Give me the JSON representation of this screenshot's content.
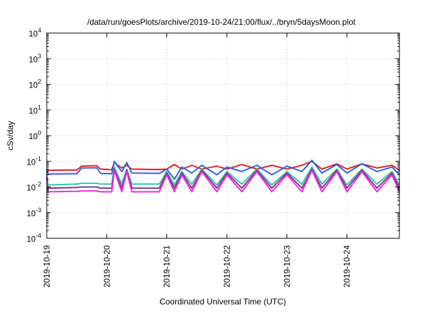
{
  "chart_data": {
    "type": "line",
    "title": "/data/run/goesPlots/archive/2019-10-24/21:00/flux/../bryn/5daysMoon.plot",
    "xlabel": "Coordinated Universal Time (UTC)",
    "ylabel": "cSv/day",
    "yscale": "log",
    "ylim": [
      0.0001,
      10000
    ],
    "xlim": [
      "2019-10-19",
      "2019-10-24T21:00"
    ],
    "grid": true,
    "legend": "none",
    "x_ticks": [
      {
        "value": "2019-10-19",
        "label": "2019-10-19"
      },
      {
        "value": "2019-10-20",
        "label": "2019-10-20"
      },
      {
        "value": "2019-10-21",
        "label": "2019-10-21"
      },
      {
        "value": "2019-10-22",
        "label": "2019-10-22"
      },
      {
        "value": "2019-10-23",
        "label": "2019-10-23"
      },
      {
        "value": "2019-10-24",
        "label": "2019-10-24"
      }
    ],
    "y_ticks": [
      {
        "value": 0.0001,
        "base": "10",
        "exp": "-4"
      },
      {
        "value": 0.001,
        "base": "10",
        "exp": "-3"
      },
      {
        "value": 0.01,
        "base": "10",
        "exp": "-2"
      },
      {
        "value": 0.1,
        "base": "10",
        "exp": "-1"
      },
      {
        "value": 1,
        "base": "10",
        "exp": "0"
      },
      {
        "value": 10,
        "base": "10",
        "exp": "1"
      },
      {
        "value": 100,
        "base": "10",
        "exp": "2"
      },
      {
        "value": 1000,
        "base": "10",
        "exp": "3"
      },
      {
        "value": 10000,
        "base": "10",
        "exp": "4"
      }
    ],
    "series": [
      {
        "color": "#e8201e",
        "points": [
          [
            "2019-10-19T00:00",
            0.05
          ],
          [
            "2019-10-19T00:30",
            0.045
          ],
          [
            "2019-10-19T01:30",
            0.045
          ],
          [
            "2019-10-19T12:00",
            0.046
          ],
          [
            "2019-10-19T14:00",
            0.065
          ],
          [
            "2019-10-19T20:00",
            0.068
          ],
          [
            "2019-10-19T21:30",
            0.05
          ],
          [
            "2019-10-20T02:00",
            0.047
          ],
          [
            "2019-10-20T03:00",
            0.09
          ],
          [
            "2019-10-20T06:00",
            0.055
          ],
          [
            "2019-10-20T08:00",
            0.07
          ],
          [
            "2019-10-20T10:00",
            0.05
          ],
          [
            "2019-10-20T21:00",
            0.048
          ],
          [
            "2019-10-21T00:00",
            0.05
          ],
          [
            "2019-10-21T03:00",
            0.075
          ],
          [
            "2019-10-21T06:00",
            0.05
          ],
          [
            "2019-10-21T10:00",
            0.07
          ],
          [
            "2019-10-21T14:00",
            0.05
          ],
          [
            "2019-10-21T20:00",
            0.065
          ],
          [
            "2019-10-22T00:00",
            0.05
          ],
          [
            "2019-10-22T06:00",
            0.075
          ],
          [
            "2019-10-22T12:00",
            0.05
          ],
          [
            "2019-10-22T18:00",
            0.07
          ],
          [
            "2019-10-23T00:00",
            0.05
          ],
          [
            "2019-10-23T06:00",
            0.07
          ],
          [
            "2019-10-23T10:00",
            0.1
          ],
          [
            "2019-10-23T14:00",
            0.05
          ],
          [
            "2019-10-23T20:00",
            0.08
          ],
          [
            "2019-10-24T00:00",
            0.05
          ],
          [
            "2019-10-24T06:00",
            0.08
          ],
          [
            "2019-10-24T12:00",
            0.055
          ],
          [
            "2019-10-24T18:00",
            0.07
          ],
          [
            "2019-10-24T21:00",
            0.045
          ]
        ]
      },
      {
        "color": "#2b63e0",
        "points": [
          [
            "2019-10-19T00:00",
            0.05
          ],
          [
            "2019-10-19T00:30",
            0.032
          ],
          [
            "2019-10-19T12:00",
            0.033
          ],
          [
            "2019-10-19T14:00",
            0.055
          ],
          [
            "2019-10-19T20:00",
            0.056
          ],
          [
            "2019-10-19T21:30",
            0.034
          ],
          [
            "2019-10-20T02:00",
            0.033
          ],
          [
            "2019-10-20T03:00",
            0.1
          ],
          [
            "2019-10-20T06:00",
            0.04
          ],
          [
            "2019-10-20T08:00",
            0.09
          ],
          [
            "2019-10-20T10:00",
            0.035
          ],
          [
            "2019-10-20T21:00",
            0.034
          ],
          [
            "2019-10-21T00:00",
            0.05
          ],
          [
            "2019-10-21T03:00",
            0.02
          ],
          [
            "2019-10-21T06:00",
            0.06
          ],
          [
            "2019-10-21T10:00",
            0.035
          ],
          [
            "2019-10-21T14:00",
            0.07
          ],
          [
            "2019-10-21T20:00",
            0.03
          ],
          [
            "2019-10-22T00:00",
            0.06
          ],
          [
            "2019-10-22T06:00",
            0.04
          ],
          [
            "2019-10-22T12:00",
            0.07
          ],
          [
            "2019-10-22T18:00",
            0.03
          ],
          [
            "2019-10-23T00:00",
            0.065
          ],
          [
            "2019-10-23T06:00",
            0.04
          ],
          [
            "2019-10-23T10:00",
            0.11
          ],
          [
            "2019-10-23T14:00",
            0.035
          ],
          [
            "2019-10-23T20:00",
            0.075
          ],
          [
            "2019-10-24T00:00",
            0.035
          ],
          [
            "2019-10-24T06:00",
            0.08
          ],
          [
            "2019-10-24T12:00",
            0.04
          ],
          [
            "2019-10-24T18:00",
            0.06
          ],
          [
            "2019-10-24T21:00",
            0.03
          ]
        ]
      },
      {
        "color": "#2fc79a",
        "points": [
          [
            "2019-10-19T00:00",
            0.03
          ],
          [
            "2019-10-19T00:30",
            0.012
          ],
          [
            "2019-10-19T12:00",
            0.013
          ],
          [
            "2019-10-19T14:00",
            0.014
          ],
          [
            "2019-10-19T20:00",
            0.014
          ],
          [
            "2019-10-19T21:30",
            0.013
          ],
          [
            "2019-10-20T02:00",
            0.013
          ],
          [
            "2019-10-20T03:00",
            0.06
          ],
          [
            "2019-10-20T06:00",
            0.013
          ],
          [
            "2019-10-20T08:00",
            0.05
          ],
          [
            "2019-10-20T10:00",
            0.013
          ],
          [
            "2019-10-20T21:00",
            0.013
          ],
          [
            "2019-10-21T00:00",
            0.04
          ],
          [
            "2019-10-21T03:00",
            0.012
          ],
          [
            "2019-10-21T06:00",
            0.04
          ],
          [
            "2019-10-21T10:00",
            0.013
          ],
          [
            "2019-10-21T14:00",
            0.05
          ],
          [
            "2019-10-21T20:00",
            0.012
          ],
          [
            "2019-10-22T00:00",
            0.04
          ],
          [
            "2019-10-22T06:00",
            0.013
          ],
          [
            "2019-10-22T12:00",
            0.05
          ],
          [
            "2019-10-22T18:00",
            0.012
          ],
          [
            "2019-10-23T00:00",
            0.04
          ],
          [
            "2019-10-23T06:00",
            0.013
          ],
          [
            "2019-10-23T10:00",
            0.06
          ],
          [
            "2019-10-23T14:00",
            0.013
          ],
          [
            "2019-10-23T20:00",
            0.05
          ],
          [
            "2019-10-24T00:00",
            0.012
          ],
          [
            "2019-10-24T06:00",
            0.05
          ],
          [
            "2019-10-24T12:00",
            0.013
          ],
          [
            "2019-10-24T18:00",
            0.04
          ],
          [
            "2019-10-24T21:00",
            0.012
          ]
        ]
      },
      {
        "color": "#7a3a8c",
        "points": [
          [
            "2019-10-19T00:00",
            0.025
          ],
          [
            "2019-10-19T00:30",
            0.009
          ],
          [
            "2019-10-19T12:00",
            0.0095
          ],
          [
            "2019-10-19T14:00",
            0.01
          ],
          [
            "2019-10-19T20:00",
            0.01
          ],
          [
            "2019-10-19T21:30",
            0.009
          ],
          [
            "2019-10-20T02:00",
            0.009
          ],
          [
            "2019-10-20T03:00",
            0.05
          ],
          [
            "2019-10-20T06:00",
            0.009
          ],
          [
            "2019-10-20T08:00",
            0.045
          ],
          [
            "2019-10-20T10:00",
            0.009
          ],
          [
            "2019-10-20T21:00",
            0.009
          ],
          [
            "2019-10-21T00:00",
            0.035
          ],
          [
            "2019-10-21T03:00",
            0.009
          ],
          [
            "2019-10-21T06:00",
            0.035
          ],
          [
            "2019-10-21T10:00",
            0.009
          ],
          [
            "2019-10-21T14:00",
            0.045
          ],
          [
            "2019-10-21T20:00",
            0.009
          ],
          [
            "2019-10-22T00:00",
            0.035
          ],
          [
            "2019-10-22T06:00",
            0.009
          ],
          [
            "2019-10-22T12:00",
            0.045
          ],
          [
            "2019-10-22T18:00",
            0.009
          ],
          [
            "2019-10-23T00:00",
            0.035
          ],
          [
            "2019-10-23T06:00",
            0.009
          ],
          [
            "2019-10-23T10:00",
            0.05
          ],
          [
            "2019-10-23T14:00",
            0.009
          ],
          [
            "2019-10-23T20:00",
            0.045
          ],
          [
            "2019-10-24T00:00",
            0.009
          ],
          [
            "2019-10-24T06:00",
            0.045
          ],
          [
            "2019-10-24T12:00",
            0.009
          ],
          [
            "2019-10-24T18:00",
            0.035
          ],
          [
            "2019-10-24T21:00",
            0.009
          ]
        ]
      },
      {
        "color": "#ff1fe6",
        "points": [
          [
            "2019-10-19T00:00",
            0.022
          ],
          [
            "2019-10-19T00:30",
            0.0065
          ],
          [
            "2019-10-19T12:00",
            0.0068
          ],
          [
            "2019-10-19T14:00",
            0.007
          ],
          [
            "2019-10-19T20:00",
            0.007
          ],
          [
            "2019-10-19T21:30",
            0.0065
          ],
          [
            "2019-10-20T02:00",
            0.0065
          ],
          [
            "2019-10-20T03:00",
            0.045
          ],
          [
            "2019-10-20T06:00",
            0.0065
          ],
          [
            "2019-10-20T08:00",
            0.04
          ],
          [
            "2019-10-20T10:00",
            0.0065
          ],
          [
            "2019-10-20T21:00",
            0.0065
          ],
          [
            "2019-10-21T00:00",
            0.03
          ],
          [
            "2019-10-21T03:00",
            0.0065
          ],
          [
            "2019-10-21T06:00",
            0.03
          ],
          [
            "2019-10-21T10:00",
            0.0065
          ],
          [
            "2019-10-21T14:00",
            0.04
          ],
          [
            "2019-10-21T20:00",
            0.0065
          ],
          [
            "2019-10-22T00:00",
            0.03
          ],
          [
            "2019-10-22T06:00",
            0.0065
          ],
          [
            "2019-10-22T12:00",
            0.04
          ],
          [
            "2019-10-22T18:00",
            0.0065
          ],
          [
            "2019-10-23T00:00",
            0.03
          ],
          [
            "2019-10-23T06:00",
            0.0065
          ],
          [
            "2019-10-23T10:00",
            0.045
          ],
          [
            "2019-10-23T14:00",
            0.0065
          ],
          [
            "2019-10-23T20:00",
            0.04
          ],
          [
            "2019-10-24T00:00",
            0.0065
          ],
          [
            "2019-10-24T06:00",
            0.04
          ],
          [
            "2019-10-24T12:00",
            0.0065
          ],
          [
            "2019-10-24T18:00",
            0.03
          ],
          [
            "2019-10-24T21:00",
            0.0065
          ]
        ]
      }
    ]
  }
}
